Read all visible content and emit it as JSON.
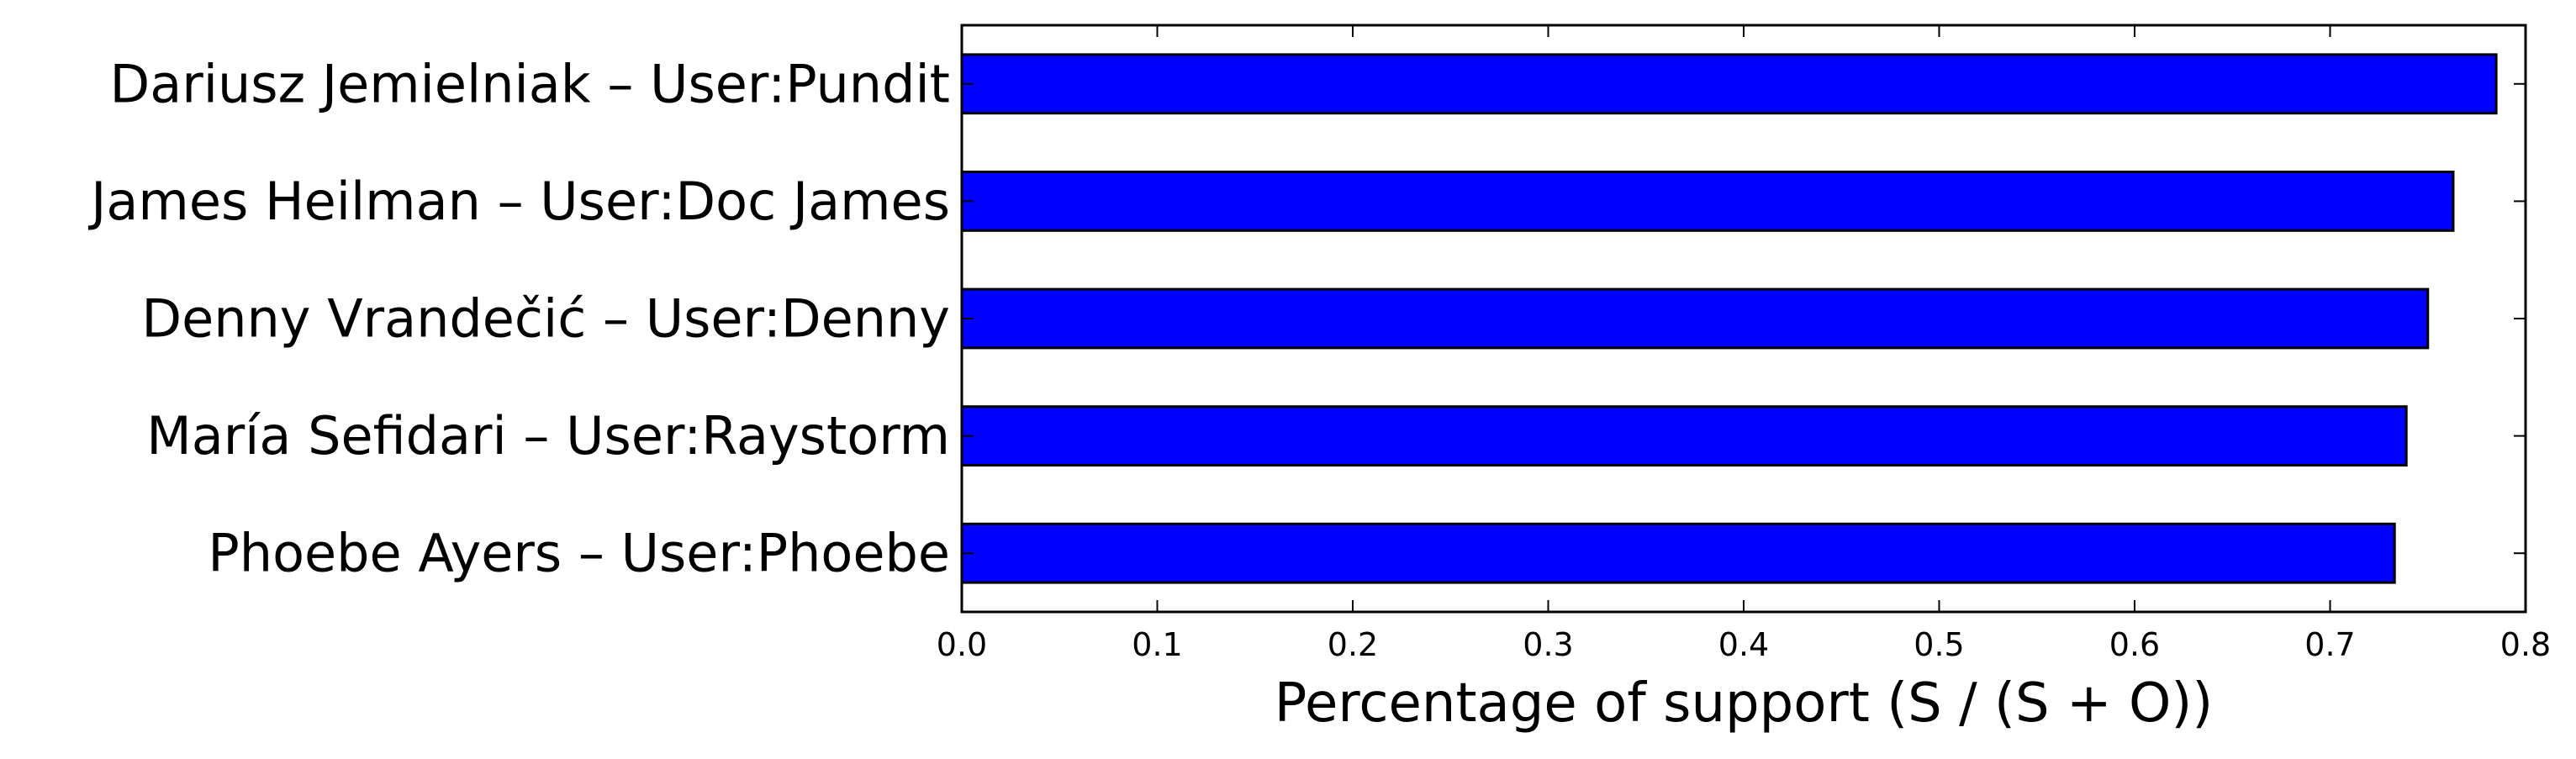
{
  "chart_data": {
    "type": "bar",
    "orientation": "horizontal",
    "categories": [
      "Dariusz Jemielniak – User:Pundit",
      "James Heilman – User:Doc James",
      "Denny Vrandečić – User:Denny",
      "María Sefidari – User:Raystorm",
      "Phoebe Ayers – User:Phoebe"
    ],
    "values": [
      0.785,
      0.763,
      0.75,
      0.739,
      0.733
    ],
    "title": "",
    "xlabel": "Percentage of support (S / (S + O))",
    "ylabel": "",
    "xlim": [
      0.0,
      0.8
    ],
    "xticks": [
      "0.0",
      "0.1",
      "0.2",
      "0.3",
      "0.4",
      "0.5",
      "0.6",
      "0.7",
      "0.8"
    ],
    "bar_color": "#0000ff",
    "edge_color": "#000000",
    "grid": false,
    "legend": "none"
  }
}
